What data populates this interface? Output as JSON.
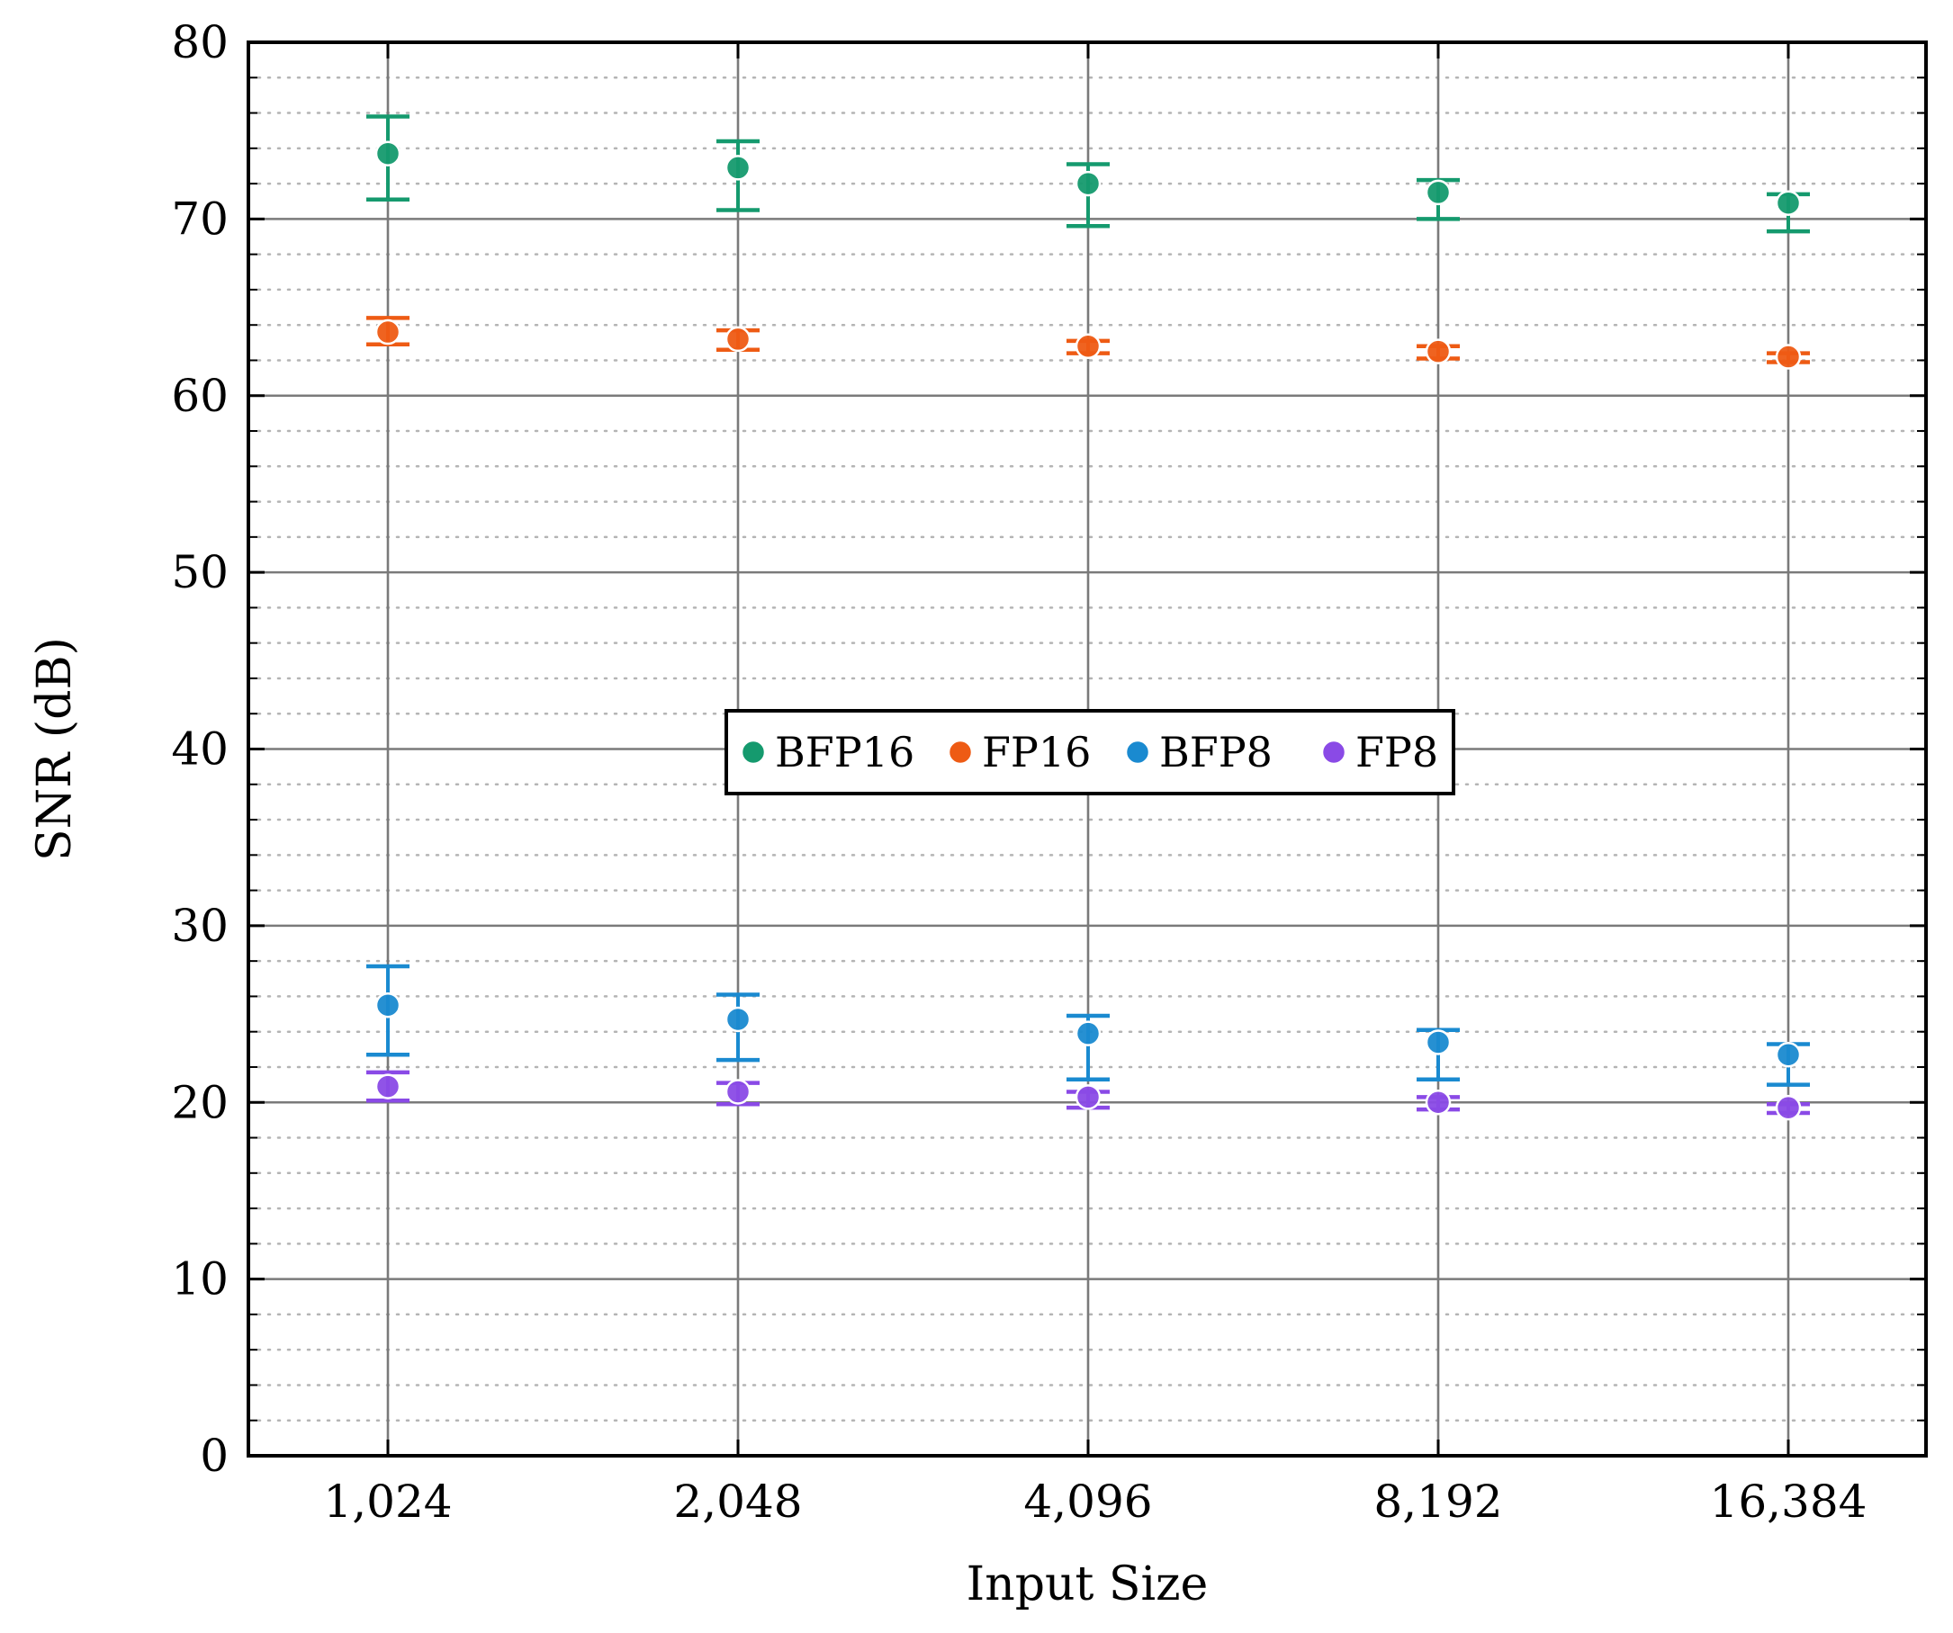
{
  "chart_data": {
    "type": "scatter",
    "title": "",
    "xlabel": "Input Size",
    "ylabel": "SNR (dB)",
    "categories": [
      "1,024",
      "2,048",
      "4,096",
      "8,192",
      "16,384"
    ],
    "ylim": [
      0,
      80
    ],
    "yticks": [
      "0",
      "10",
      "20",
      "30",
      "40",
      "50",
      "60",
      "70",
      "80"
    ],
    "grid": "major solid, minor dotted",
    "legend_position": "center",
    "series": [
      {
        "name": "BFP16",
        "color": "#159a6e",
        "values": [
          73.7,
          72.9,
          72.0,
          71.5,
          70.9
        ],
        "err_low": [
          71.1,
          70.5,
          69.6,
          70.0,
          69.3
        ],
        "err_high": [
          75.8,
          74.4,
          73.1,
          72.2,
          71.4
        ]
      },
      {
        "name": "FP16",
        "color": "#ee5b14",
        "values": [
          63.6,
          63.2,
          62.8,
          62.5,
          62.2
        ],
        "err_low": [
          62.9,
          62.6,
          62.4,
          62.1,
          61.9
        ],
        "err_high": [
          64.4,
          63.7,
          63.1,
          62.8,
          62.4
        ]
      },
      {
        "name": "BFP8",
        "color": "#1a8ad0",
        "values": [
          25.5,
          24.7,
          23.9,
          23.4,
          22.7
        ],
        "err_low": [
          22.7,
          22.4,
          21.3,
          21.3,
          21.0
        ],
        "err_high": [
          27.7,
          26.1,
          24.9,
          24.1,
          23.3
        ]
      },
      {
        "name": "FP8",
        "color": "#8a4ae6",
        "values": [
          20.9,
          20.6,
          20.3,
          20.0,
          19.7
        ],
        "err_low": [
          20.1,
          19.9,
          19.7,
          19.6,
          19.4
        ],
        "err_high": [
          21.7,
          21.1,
          20.6,
          20.3,
          19.9
        ]
      }
    ]
  }
}
